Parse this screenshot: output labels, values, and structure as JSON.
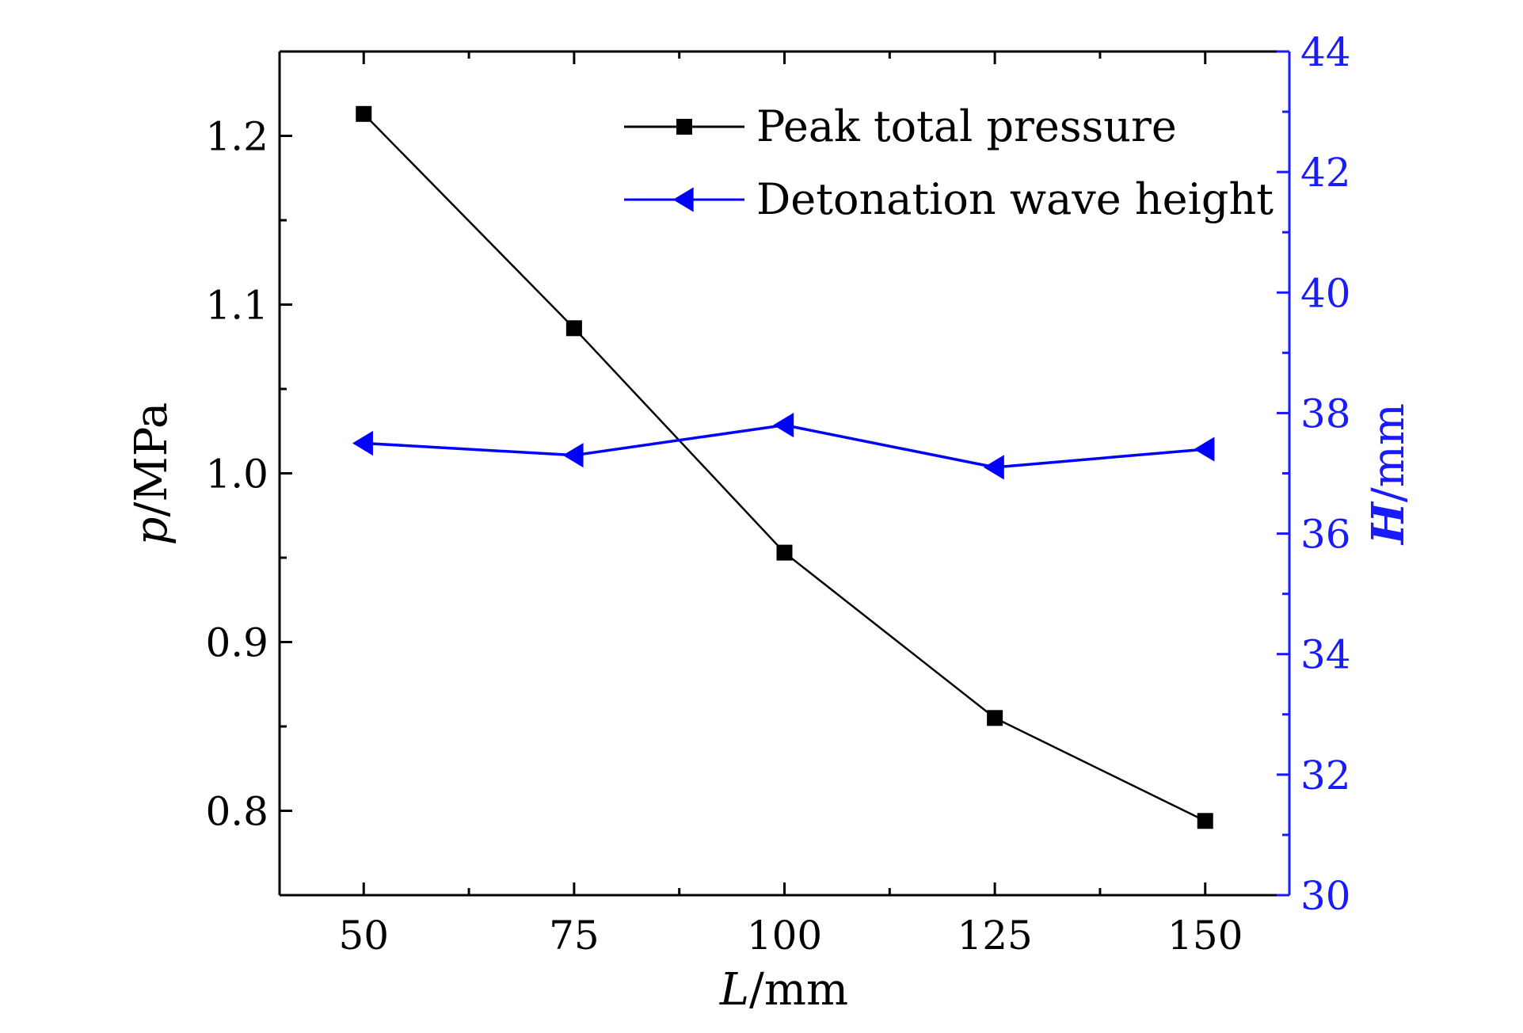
{
  "colors": {
    "left_axis": "#000000",
    "right_axis": "#1a1aff",
    "pressure_series": "#000000",
    "height_series": "#0000ff"
  },
  "chart_data": {
    "type": "line",
    "x_axis": {
      "label_var": "L",
      "label_unit": "/mm",
      "range": [
        40,
        160
      ],
      "ticks": [
        50,
        75,
        100,
        125,
        150
      ],
      "tick_labels": [
        "50",
        "75",
        "100",
        "125",
        "150"
      ],
      "minor_ticks": [
        62.5,
        87.5,
        112.5,
        137.5
      ]
    },
    "y_left": {
      "label_var": "p",
      "label_unit": "/MPa",
      "range": [
        0.75,
        1.25
      ],
      "ticks": [
        0.8,
        0.9,
        1.0,
        1.1,
        1.2
      ],
      "tick_labels": [
        "0.8",
        "0.9",
        "1.0",
        "1.1",
        "1.2"
      ],
      "minor_ticks": [
        0.85,
        0.95,
        1.05,
        1.15
      ]
    },
    "y_right": {
      "label_var": "H",
      "label_unit": "/mm",
      "range": [
        30,
        44
      ],
      "ticks": [
        30,
        32,
        34,
        36,
        38,
        40,
        42,
        44
      ],
      "tick_labels": [
        "30",
        "32",
        "34",
        "36",
        "38",
        "40",
        "42",
        "44"
      ],
      "minor_ticks": [
        31,
        33,
        35,
        37,
        39,
        41,
        43
      ]
    },
    "legend_position": "top-right",
    "grid": false,
    "series": [
      {
        "name": "Peak total pressure",
        "axis": "left",
        "marker": "square",
        "x": [
          50,
          75,
          100,
          125,
          150
        ],
        "y": [
          1.213,
          1.086,
          0.953,
          0.855,
          0.794
        ]
      },
      {
        "name": "Detonation wave height",
        "axis": "right",
        "marker": "left-triangle",
        "x": [
          50,
          75,
          100,
          125,
          150
        ],
        "y": [
          37.5,
          37.3,
          37.8,
          37.1,
          37.4
        ]
      }
    ]
  }
}
